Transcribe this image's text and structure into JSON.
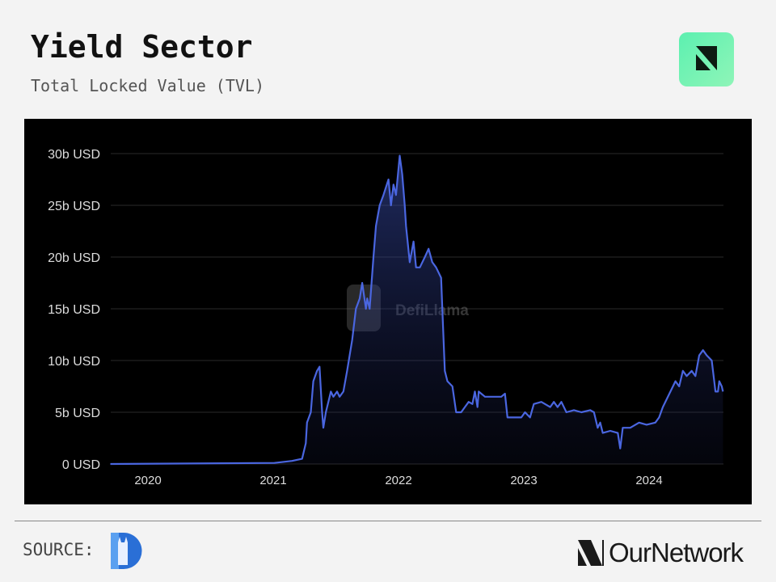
{
  "header": {
    "title": "Yield Sector",
    "subtitle": "Total Locked Value (TVL)"
  },
  "footer": {
    "source_label": "SOURCE:",
    "brand_name": "OurNetwork"
  },
  "watermark": "DefiLlama",
  "colors": {
    "line": "#4a66e0",
    "brand_green": "#6ef2b4",
    "background": "#f3f3f3",
    "chart_bg": "#000000"
  },
  "chart_data": {
    "type": "area",
    "title": "",
    "xlabel": "",
    "ylabel": "",
    "xlim": [
      2019.7,
      2024.59
    ],
    "ylim": [
      0,
      30
    ],
    "x_ticks": [
      2020,
      2021,
      2022,
      2023,
      2024
    ],
    "x_tick_labels": [
      "2020",
      "2021",
      "2022",
      "2023",
      "2024"
    ],
    "y_ticks": [
      0,
      5,
      10,
      15,
      20,
      25,
      30
    ],
    "y_tick_labels": [
      "0 USD",
      "5b USD",
      "10b USD",
      "15b USD",
      "20b USD",
      "25b USD",
      "30b USD"
    ],
    "grid": true,
    "series": [
      {
        "x": [
          2019.7,
          2021.01,
          2021.15,
          2021.23,
          2021.26,
          2021.27,
          2021.3,
          2021.32,
          2021.35,
          2021.37,
          2021.39,
          2021.4,
          2021.42,
          2021.45,
          2021.46,
          2021.48,
          2021.51,
          2021.53,
          2021.56,
          2021.59,
          2021.63,
          2021.66,
          2021.69,
          2021.71,
          2021.74,
          2021.75,
          2021.77,
          2021.8,
          2021.82,
          2021.85,
          2021.88,
          2021.92,
          2021.94,
          2021.96,
          2021.98,
          2022.01,
          2022.03,
          2022.05,
          2022.06,
          2022.09,
          2022.12,
          2022.14,
          2022.17,
          2022.21,
          2022.24,
          2022.27,
          2022.3,
          2022.34,
          2022.35,
          2022.37,
          2022.39,
          2022.43,
          2022.46,
          2022.5,
          2022.53,
          2022.56,
          2022.59,
          2022.61,
          2022.63,
          2022.64,
          2022.69,
          2022.75,
          2022.82,
          2022.85,
          2022.87,
          2022.95,
          2022.98,
          2023.01,
          2023.05,
          2023.08,
          2023.14,
          2023.21,
          2023.24,
          2023.27,
          2023.3,
          2023.34,
          2023.4,
          2023.46,
          2023.53,
          2023.56,
          2023.59,
          2023.61,
          2023.63,
          2023.69,
          2023.75,
          2023.77,
          2023.79,
          2023.85,
          2023.92,
          2023.98,
          2024.05,
          2024.08,
          2024.11,
          2024.17,
          2024.21,
          2024.24,
          2024.27,
          2024.3,
          2024.34,
          2024.37,
          2024.4,
          2024.43,
          2024.46,
          2024.5,
          2024.52,
          2024.53,
          2024.55,
          2024.56,
          2024.58,
          2024.59
        ],
        "values": [
          0,
          0.1,
          0.3,
          0.5,
          2,
          4,
          5,
          8,
          9,
          9.4,
          5,
          3.5,
          5,
          6.5,
          7,
          6.5,
          7,
          6.5,
          7,
          9,
          12,
          15,
          16,
          17.5,
          15,
          16,
          15,
          20,
          23,
          25,
          26,
          27.5,
          25,
          27,
          26,
          29.8,
          28,
          25,
          23,
          19.5,
          21.5,
          19,
          19,
          20,
          20.8,
          19.5,
          19,
          18,
          15,
          9,
          8,
          7.5,
          5,
          5,
          5.5,
          6,
          5.8,
          7,
          5.5,
          7,
          6.5,
          6.5,
          6.5,
          6.8,
          4.5,
          4.5,
          4.5,
          5,
          4.5,
          5.8,
          6,
          5.5,
          6,
          5.5,
          6,
          5,
          5.2,
          5,
          5.2,
          5,
          3.5,
          4,
          3,
          3.2,
          3,
          1.5,
          3.5,
          3.5,
          4,
          3.8,
          4,
          4.5,
          5.5,
          7,
          8,
          7.5,
          9,
          8.5,
          9,
          8.5,
          10.5,
          11,
          10.5,
          10,
          8,
          7,
          7,
          8,
          7.5,
          7
        ]
      }
    ]
  }
}
